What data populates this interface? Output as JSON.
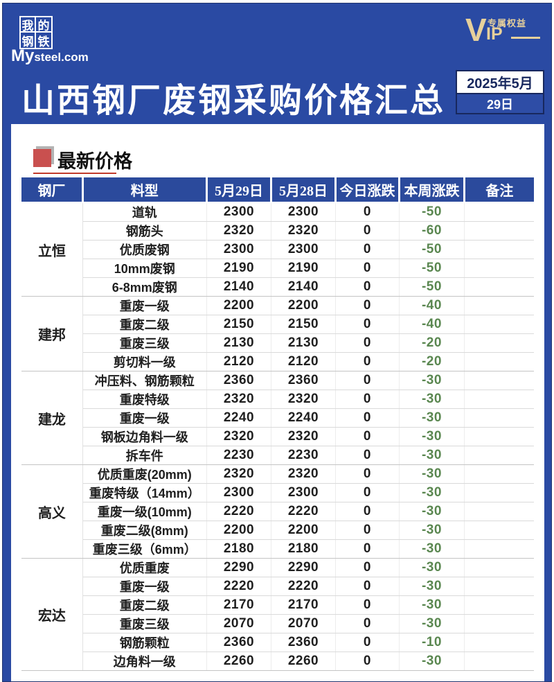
{
  "brand": {
    "logo_chars": [
      "我",
      "的",
      "钢",
      "铁"
    ],
    "domain_my": "My",
    "domain_rest": "steel.com",
    "vip_v": "V",
    "vip_ip": "IP",
    "vip_label": "专属权益"
  },
  "header": {
    "title": "山西钢厂废钢采购价格汇总",
    "date_month": "2025年5月",
    "date_day": "29日"
  },
  "section": {
    "title": "最新价格"
  },
  "table": {
    "columns": [
      "钢厂",
      "料型",
      "5月29日",
      "5月28日",
      "今日涨跌",
      "本周涨跌",
      "备注"
    ],
    "groups": [
      {
        "mill": "立恒",
        "rows": [
          [
            "道轨",
            "2300",
            "2300",
            "0",
            "-50",
            ""
          ],
          [
            "钢筋头",
            "2320",
            "2320",
            "0",
            "-60",
            ""
          ],
          [
            "优质废钢",
            "2300",
            "2300",
            "0",
            "-50",
            ""
          ],
          [
            "10mm废钢",
            "2190",
            "2190",
            "0",
            "-50",
            ""
          ],
          [
            "6-8mm废钢",
            "2140",
            "2140",
            "0",
            "-50",
            ""
          ]
        ]
      },
      {
        "mill": "建邦",
        "rows": [
          [
            "重废一级",
            "2200",
            "2200",
            "0",
            "-40",
            ""
          ],
          [
            "重废二级",
            "2150",
            "2150",
            "0",
            "-40",
            ""
          ],
          [
            "重废三级",
            "2130",
            "2130",
            "0",
            "-20",
            ""
          ],
          [
            "剪切料一级",
            "2120",
            "2120",
            "0",
            "-20",
            ""
          ]
        ]
      },
      {
        "mill": "建龙",
        "rows": [
          [
            "冲压料、钢筋颗粒",
            "2360",
            "2360",
            "0",
            "-30",
            ""
          ],
          [
            "重废特级",
            "2320",
            "2320",
            "0",
            "-30",
            ""
          ],
          [
            "重废一级",
            "2240",
            "2240",
            "0",
            "-30",
            ""
          ],
          [
            "钢板边角料一级",
            "2320",
            "2320",
            "0",
            "-30",
            ""
          ],
          [
            "拆车件",
            "2230",
            "2230",
            "0",
            "-30",
            ""
          ]
        ]
      },
      {
        "mill": "高义",
        "rows": [
          [
            "优质重废(20mm)",
            "2320",
            "2320",
            "0",
            "-30",
            ""
          ],
          [
            "重废特级（14mm）",
            "2300",
            "2300",
            "0",
            "-30",
            ""
          ],
          [
            "重废一级(10mm)",
            "2220",
            "2220",
            "0",
            "-30",
            ""
          ],
          [
            "重废二级(8mm)",
            "2200",
            "2200",
            "0",
            "-30",
            ""
          ],
          [
            "重废三级（6mm）",
            "2180",
            "2180",
            "0",
            "-30",
            ""
          ]
        ]
      },
      {
        "mill": "宏达",
        "rows": [
          [
            "优质重废",
            "2290",
            "2290",
            "0",
            "-30",
            ""
          ],
          [
            "重废一级",
            "2220",
            "2220",
            "0",
            "-30",
            ""
          ],
          [
            "重废二级",
            "2170",
            "2170",
            "0",
            "-30",
            ""
          ],
          [
            "重废三级",
            "2070",
            "2070",
            "0",
            "-30",
            ""
          ],
          [
            "钢筋颗粒",
            "2360",
            "2360",
            "0",
            "-10",
            ""
          ],
          [
            "边角料一级",
            "2260",
            "2260",
            "0",
            "-30",
            ""
          ]
        ]
      }
    ]
  },
  "colors": {
    "page_blue": "#2a4aa3",
    "header_cell_blue": "#2b4a9c",
    "dark_navy": "#18285e",
    "accent_red": "#c9504f",
    "underline_red": "#c0392b",
    "change_green": "#5a8750",
    "vip_gold": "#e6d09b"
  }
}
